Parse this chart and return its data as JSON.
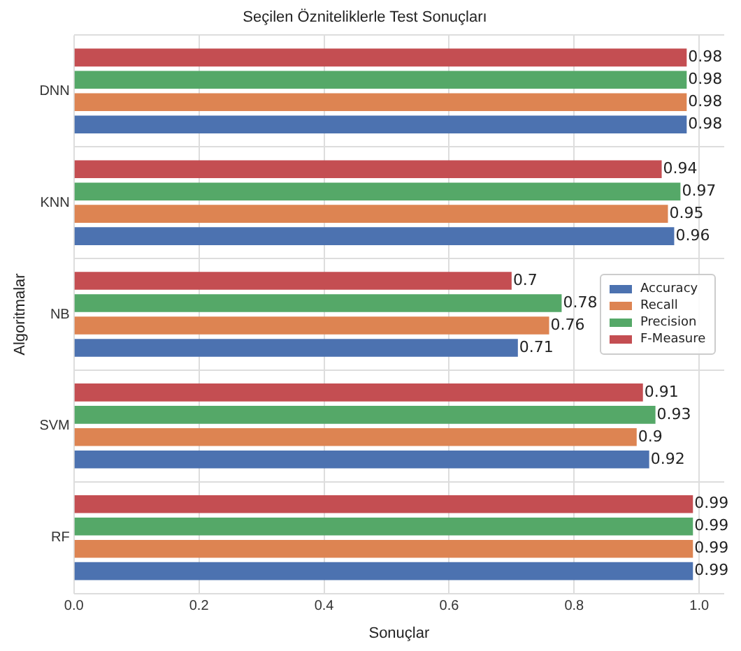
{
  "chart_data": {
    "type": "bar",
    "orientation": "horizontal",
    "title": "Seçilen Özniteliklerle Test Sonuçları",
    "xlabel": "Sonuçlar",
    "ylabel": "Algoritmalar",
    "categories": [
      "DNN",
      "KNN",
      "NB",
      "SVM",
      "RF"
    ],
    "series": [
      {
        "name": "Accuracy",
        "color": "#4c72b0",
        "values": [
          0.98,
          0.96,
          0.71,
          0.92,
          0.99
        ]
      },
      {
        "name": "Recall",
        "color": "#dd8452",
        "values": [
          0.98,
          0.95,
          0.76,
          0.9,
          0.99
        ]
      },
      {
        "name": "Precision",
        "color": "#55a868",
        "values": [
          0.98,
          0.97,
          0.78,
          0.93,
          0.99
        ]
      },
      {
        "name": "F-Measure",
        "color": "#c44e52",
        "values": [
          0.98,
          0.94,
          0.7,
          0.91,
          0.99
        ]
      }
    ],
    "xlim": [
      0,
      1.04
    ],
    "xticks": [
      {
        "value": 0,
        "label": "0.0"
      },
      0.2,
      0.4,
      0.6,
      0.8,
      {
        "value": 1,
        "label": "1.0"
      }
    ],
    "grid": true,
    "legend": "right",
    "data_labels": true
  }
}
